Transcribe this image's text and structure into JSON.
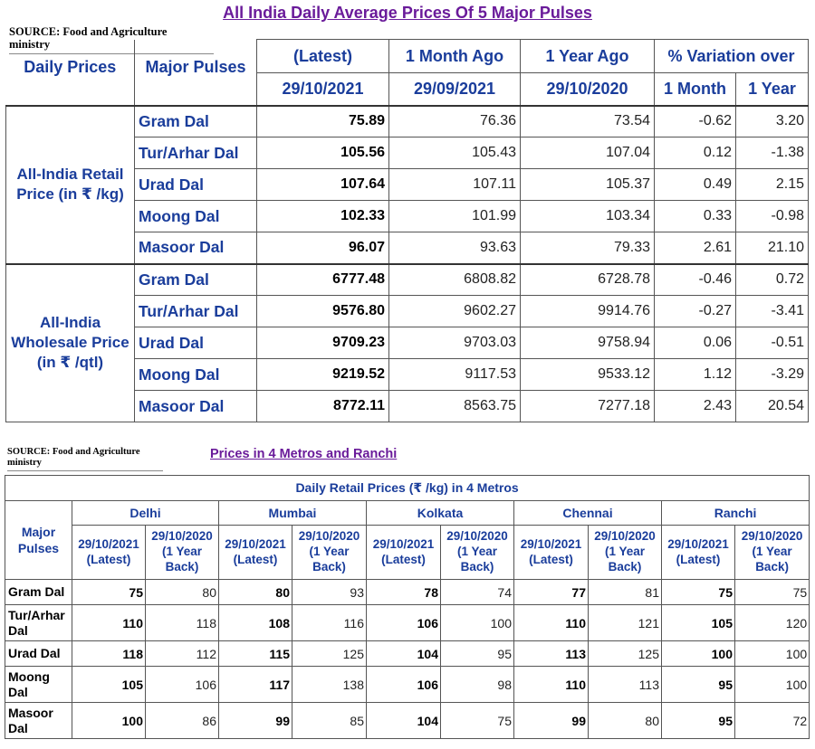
{
  "title": "All India Daily Average Prices Of 5 Major Pulses",
  "source_label": "SOURCE: Food and Agriculture ministry",
  "source_line1": "SOURCE: Food and Agriculture",
  "source_line2": "ministry",
  "table1": {
    "header": {
      "daily_prices": "Daily Prices",
      "major_pulses": "Major Pulses",
      "latest": "(Latest)",
      "month_ago": "1 Month Ago",
      "year_ago": "1 Year Ago",
      "variation": "% Variation over",
      "latest_date": "29/10/2021",
      "month_ago_date": "29/09/2021",
      "year_ago_date": "29/10/2020",
      "var_month": "1 Month",
      "var_year": "1 Year"
    },
    "groups": [
      {
        "label": "All-India Retail Price (in ₹ /kg)",
        "rows": [
          {
            "pulse": "Gram Dal",
            "latest": "75.89",
            "month_ago": "76.36",
            "year_ago": "73.54",
            "var_month": "-0.62",
            "var_year": "3.20"
          },
          {
            "pulse": "Tur/Arhar Dal",
            "latest": "105.56",
            "month_ago": "105.43",
            "year_ago": "107.04",
            "var_month": "0.12",
            "var_year": "-1.38"
          },
          {
            "pulse": "Urad Dal",
            "latest": "107.64",
            "month_ago": "107.11",
            "year_ago": "105.37",
            "var_month": "0.49",
            "var_year": "2.15"
          },
          {
            "pulse": "Moong Dal",
            "latest": "102.33",
            "month_ago": "101.99",
            "year_ago": "103.34",
            "var_month": "0.33",
            "var_year": "-0.98"
          },
          {
            "pulse": "Masoor Dal",
            "latest": "96.07",
            "month_ago": "93.63",
            "year_ago": "79.33",
            "var_month": "2.61",
            "var_year": "21.10"
          }
        ]
      },
      {
        "label": "All-India Wholesale Price (in ₹ /qtl)",
        "rows": [
          {
            "pulse": "Gram Dal",
            "latest": "6777.48",
            "month_ago": "6808.82",
            "year_ago": "6728.78",
            "var_month": "-0.46",
            "var_year": "0.72"
          },
          {
            "pulse": "Tur/Arhar Dal",
            "latest": "9576.80",
            "month_ago": "9602.27",
            "year_ago": "9914.76",
            "var_month": "-0.27",
            "var_year": "-3.41"
          },
          {
            "pulse": "Urad Dal",
            "latest": "9709.23",
            "month_ago": "9703.03",
            "year_ago": "9758.94",
            "var_month": "0.06",
            "var_year": "-0.51"
          },
          {
            "pulse": "Moong Dal",
            "latest": "9219.52",
            "month_ago": "9117.53",
            "year_ago": "9533.12",
            "var_month": "1.12",
            "var_year": "-3.29"
          },
          {
            "pulse": "Masoor Dal",
            "latest": "8772.11",
            "month_ago": "8563.75",
            "year_ago": "7277.18",
            "var_month": "2.43",
            "var_year": "20.54"
          }
        ]
      }
    ]
  },
  "title2": "Prices in 4 Metros and Ranchi",
  "table2": {
    "caption": "Daily Retail Prices (₹ /kg) in 4 Metros",
    "major_pulses": "Major Pulses",
    "cities": [
      "Delhi",
      "Mumbai",
      "Kolkata",
      "Chennai",
      "Ranchi"
    ],
    "col_latest": "29/10/2021 (Latest)",
    "col_year_back": "29/10/2020 (1 Year Back)",
    "rows": [
      {
        "pulse": "Gram Dal",
        "values": [
          "75",
          "80",
          "80",
          "93",
          "78",
          "74",
          "77",
          "81",
          "75",
          "75"
        ]
      },
      {
        "pulse": "Tur/Arhar Dal",
        "values": [
          "110",
          "118",
          "108",
          "116",
          "106",
          "100",
          "110",
          "121",
          "105",
          "120"
        ]
      },
      {
        "pulse": "Urad Dal",
        "values": [
          "118",
          "112",
          "115",
          "125",
          "104",
          "95",
          "113",
          "125",
          "100",
          "100"
        ]
      },
      {
        "pulse": "Moong Dal",
        "values": [
          "105",
          "106",
          "117",
          "138",
          "106",
          "98",
          "110",
          "113",
          "95",
          "100"
        ]
      },
      {
        "pulse": "Masoor Dal",
        "values": [
          "100",
          "86",
          "99",
          "85",
          "104",
          "75",
          "99",
          "80",
          "95",
          "72"
        ]
      }
    ]
  }
}
